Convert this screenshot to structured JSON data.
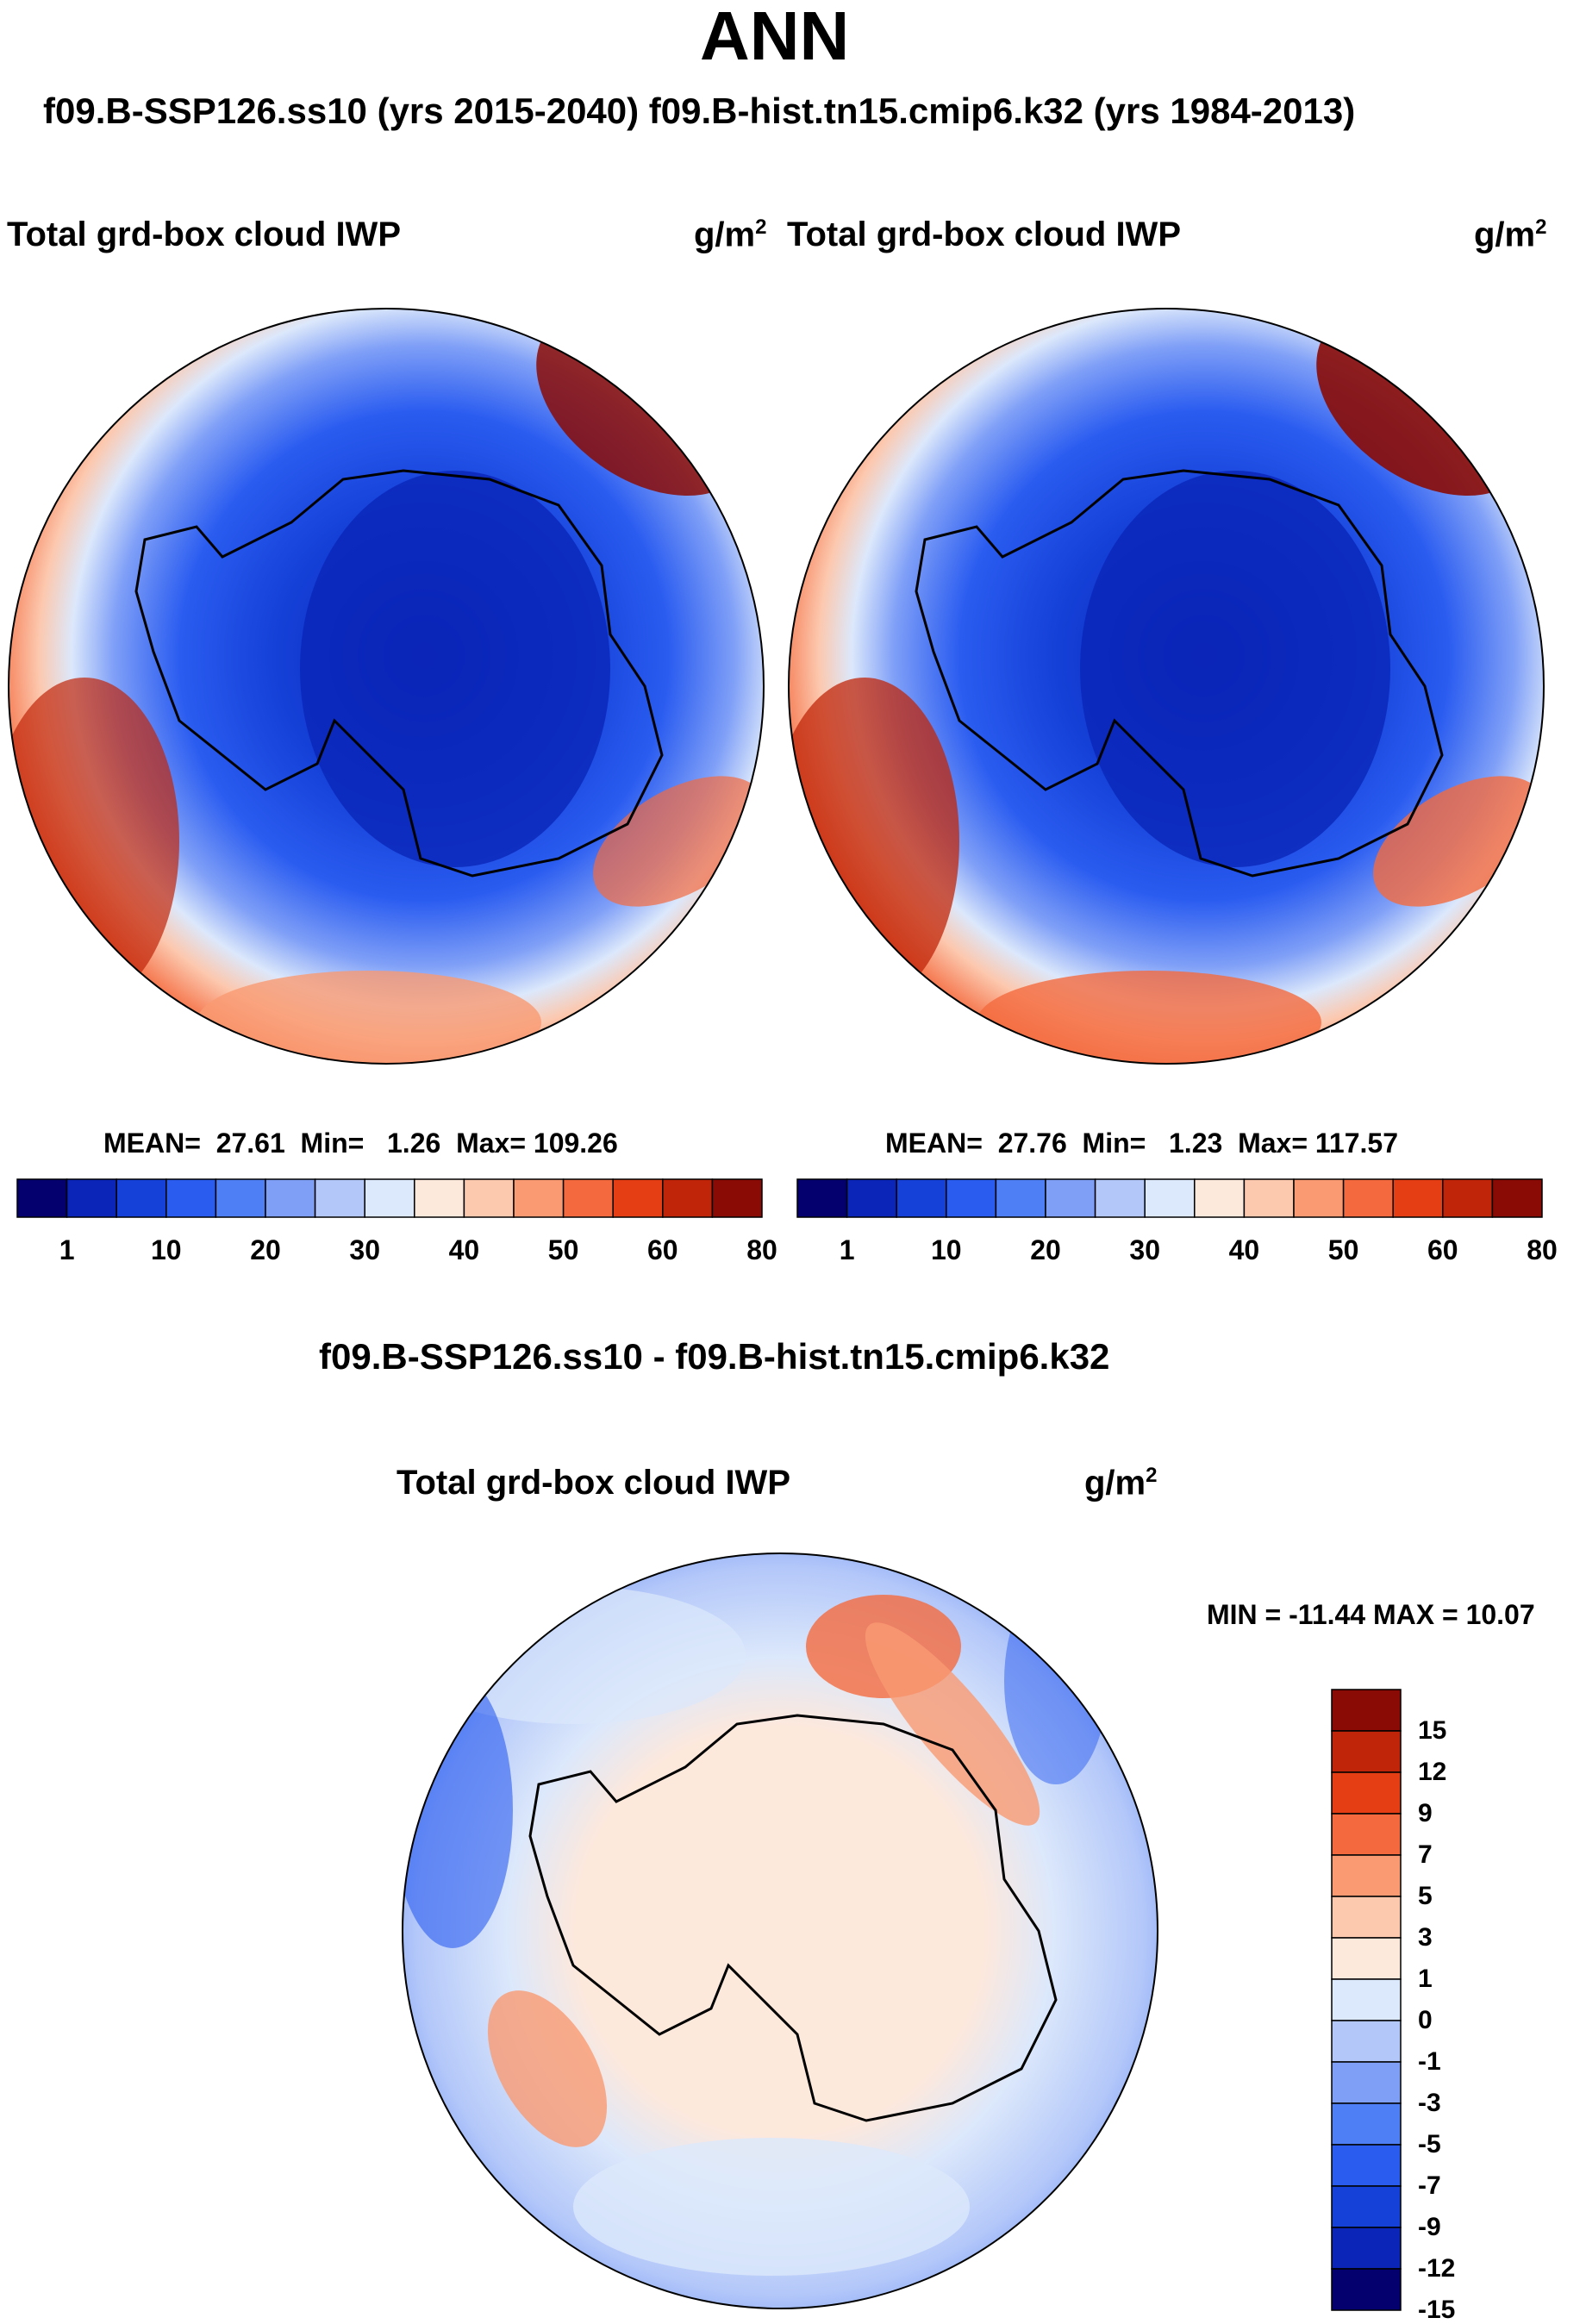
{
  "title": "ANN",
  "subtitle": "f09.B-SSP126.ss10 (yrs 2015-2040)  f09.B-hist.tn15.cmip6.k32 (yrs 1984-2013)",
  "panels": [
    {
      "variable": "Total grd-box cloud IWP",
      "units": "g/m",
      "units_exp": "2",
      "stats": {
        "mean_label": "MEAN=",
        "mean": "27.61",
        "min_label": "Min=",
        "min": "1.26",
        "max_label": "Max=",
        "max": "109.26"
      }
    },
    {
      "variable": "Total grd-box cloud IWP",
      "units": "g/m",
      "units_exp": "2",
      "stats": {
        "mean_label": "MEAN=",
        "mean": "27.76",
        "min_label": "Min=",
        "min": "1.23",
        "max_label": "Max=",
        "max": "117.57"
      }
    }
  ],
  "abs_colorbar": {
    "labels": [
      "1",
      "10",
      "20",
      "30",
      "40",
      "50",
      "60",
      "80"
    ],
    "colors": [
      "#04006e",
      "#0a25b8",
      "#1541d8",
      "#2a5cf0",
      "#4f7ff5",
      "#7f9ff7",
      "#b3c7f9",
      "#dce8fb",
      "#fde8dc",
      "#fcc8ae",
      "#f99a72",
      "#f46a3e",
      "#e63e14",
      "#c0250a",
      "#8a0b05"
    ]
  },
  "diff": {
    "title": "f09.B-SSP126.ss10 - f09.B-hist.tn15.cmip6.k32",
    "variable": "Total grd-box cloud IWP",
    "units": "g/m",
    "units_exp": "2",
    "minmax": "MIN = -11.44 MAX =  10.07",
    "colorbar": {
      "labels": [
        "15",
        "12",
        "9",
        "7",
        "5",
        "3",
        "1",
        "0",
        "-1",
        "-3",
        "-5",
        "-7",
        "-9",
        "-12",
        "-15"
      ],
      "colors": [
        "#8a0b05",
        "#c0250a",
        "#e63e14",
        "#f46a3e",
        "#f99a72",
        "#fcc8ae",
        "#fde8dc",
        "#dce8fb",
        "#b3c7f9",
        "#7f9ff7",
        "#4f7ff5",
        "#2a5cf0",
        "#1541d8",
        "#0a25b8",
        "#04006e"
      ]
    }
  }
}
